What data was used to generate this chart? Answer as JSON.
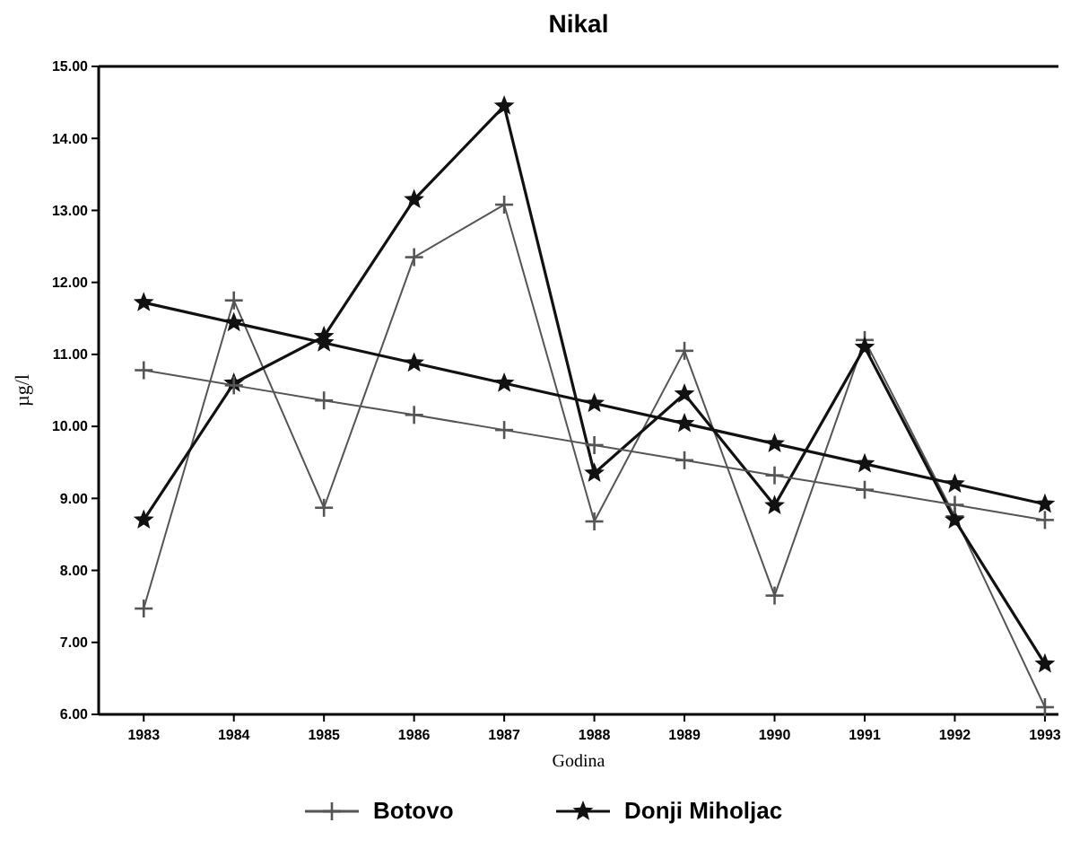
{
  "chart_data": {
    "type": "line",
    "title": "Nikal",
    "xlabel": "Godina",
    "ylabel": "µg/l",
    "x": [
      1983,
      1984,
      1985,
      1986,
      1987,
      1988,
      1989,
      1990,
      1991,
      1992,
      1993
    ],
    "xlim": [
      1982.5,
      1993.15
    ],
    "xticks": [
      1983,
      1984,
      1985,
      1986,
      1987,
      1988,
      1989,
      1990,
      1991,
      1992,
      1993
    ],
    "ylim": [
      6,
      15
    ],
    "yticks": [
      {
        "value": 6,
        "label": "6.00"
      },
      {
        "value": 7,
        "label": "7.00"
      },
      {
        "value": 8,
        "label": "8.00"
      },
      {
        "value": 9,
        "label": "9.00"
      },
      {
        "value": 10,
        "label": "10.00"
      },
      {
        "value": 11,
        "label": "11.00"
      },
      {
        "value": 12,
        "label": "12.00"
      },
      {
        "value": 13,
        "label": "13.00"
      },
      {
        "value": 14,
        "label": "14.00"
      },
      {
        "value": 15,
        "label": "15.00"
      }
    ],
    "series": [
      {
        "name": "Botovo",
        "color": "#555555",
        "marker": "cross",
        "values": [
          7.47,
          11.75,
          8.87,
          12.35,
          13.08,
          8.68,
          11.05,
          7.65,
          11.2,
          8.75,
          6.1
        ]
      },
      {
        "name": "Donji Miholjac",
        "color": "#111111",
        "marker": "star",
        "values": [
          8.7,
          10.6,
          11.25,
          13.15,
          14.45,
          9.35,
          10.45,
          8.9,
          11.1,
          8.7,
          6.7
        ]
      },
      {
        "color": "#555555",
        "marker": "cross",
        "values": [
          10.78,
          10.57,
          10.36,
          10.16,
          9.95,
          9.74,
          9.53,
          9.32,
          9.12,
          8.91,
          8.7
        ]
      },
      {
        "color": "#111111",
        "marker": "star",
        "values": [
          11.72,
          11.44,
          11.16,
          10.88,
          10.6,
          10.32,
          10.04,
          9.76,
          9.48,
          9.2,
          8.92
        ]
      }
    ],
    "legend": "bottom",
    "grid": false
  }
}
